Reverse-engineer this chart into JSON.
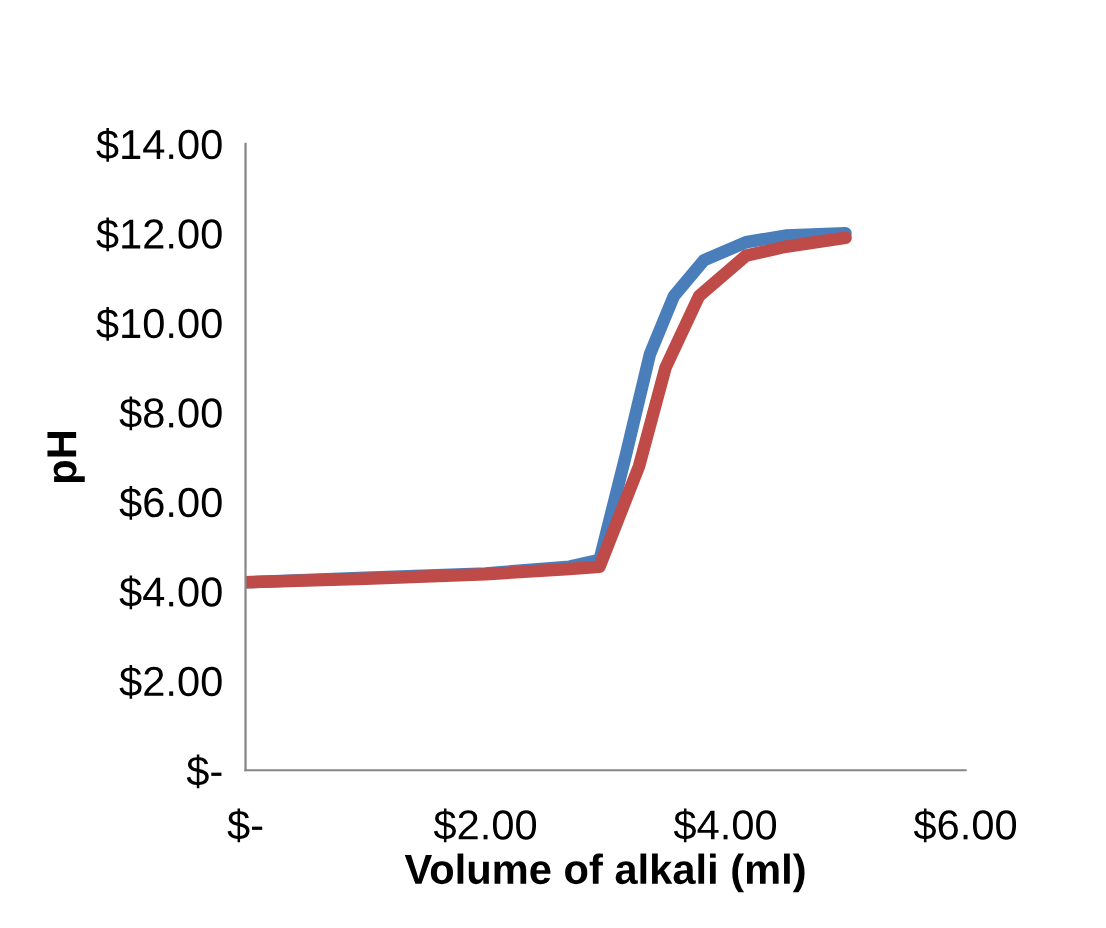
{
  "chart_data": {
    "type": "line",
    "xlabel": "Volume of alkali (ml)",
    "ylabel": "pH",
    "xlim": [
      0,
      6
    ],
    "ylim": [
      0,
      14
    ],
    "xticks": [
      {
        "value": 0,
        "label": "$-"
      },
      {
        "value": 2,
        "label": "$2.00"
      },
      {
        "value": 4,
        "label": "$4.00"
      },
      {
        "value": 6,
        "label": "$6.00"
      }
    ],
    "yticks": [
      {
        "value": 0,
        "label": "$-"
      },
      {
        "value": 2,
        "label": "$2.00"
      },
      {
        "value": 4,
        "label": "$4.00"
      },
      {
        "value": 6,
        "label": "$6.00"
      },
      {
        "value": 8,
        "label": "$8.00"
      },
      {
        "value": 10,
        "label": "$10.00"
      },
      {
        "value": 12,
        "label": "$12.00"
      },
      {
        "value": 14,
        "label": "$14.00"
      }
    ],
    "grid": false,
    "marker": "none",
    "line_style": "solid",
    "series": [
      {
        "color": "#4a7ebb",
        "x": [
          0,
          1,
          2,
          2.7,
          2.95,
          3.17,
          3.37,
          3.57,
          3.82,
          4.17,
          4.5,
          5.0
        ],
        "values": [
          4.2,
          4.3,
          4.4,
          4.55,
          4.7,
          7.05,
          9.3,
          10.6,
          11.4,
          11.8,
          11.95,
          12.0
        ]
      },
      {
        "color": "#be4b48",
        "x": [
          0,
          1,
          2,
          2.7,
          2.95,
          3.28,
          3.5,
          3.78,
          4.17,
          4.5,
          5.0
        ],
        "values": [
          4.2,
          4.28,
          4.38,
          4.5,
          4.55,
          6.8,
          9.0,
          10.6,
          11.5,
          11.7,
          11.9
        ]
      }
    ]
  }
}
